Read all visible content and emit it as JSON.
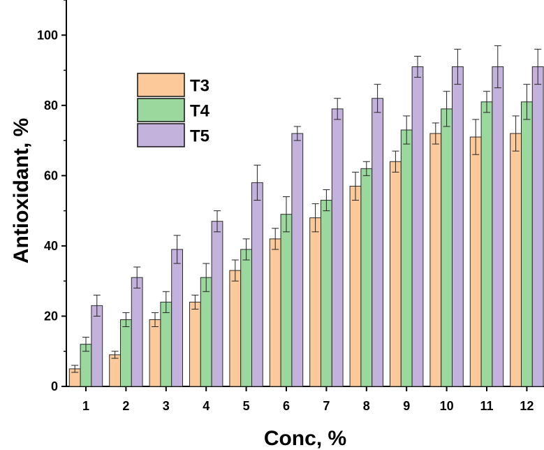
{
  "chart_data": {
    "type": "bar",
    "title": "",
    "xlabel": "Conc, %",
    "ylabel": "Antioxidant, %",
    "categories": [
      "1",
      "2",
      "3",
      "4",
      "5",
      "6",
      "7",
      "8",
      "9",
      "10",
      "11",
      "12"
    ],
    "ylim": [
      0,
      110
    ],
    "yticks": [
      "0",
      "20",
      "40",
      "60",
      "80",
      "100"
    ],
    "legend_position": "top-left",
    "grid": false,
    "series": [
      {
        "name": "T3",
        "color": "#FCC99B",
        "values": [
          5,
          9,
          19,
          24,
          33,
          42,
          48,
          57,
          64,
          72,
          71,
          72
        ],
        "errors": [
          1,
          1,
          2,
          2,
          3,
          3,
          4,
          4,
          3,
          3,
          5,
          5
        ]
      },
      {
        "name": "T4",
        "color": "#9AD89E",
        "values": [
          12,
          19,
          24,
          31,
          39,
          49,
          53,
          62,
          73,
          79,
          81,
          81
        ],
        "errors": [
          2,
          2,
          3,
          4,
          3,
          5,
          3,
          2,
          4,
          5,
          3,
          5
        ]
      },
      {
        "name": "T5",
        "color": "#C2B2DC",
        "values": [
          23,
          31,
          39,
          47,
          58,
          72,
          79,
          82,
          91,
          91,
          91,
          91
        ],
        "errors": [
          3,
          3,
          4,
          3,
          5,
          2,
          3,
          4,
          3,
          5,
          6,
          5
        ]
      }
    ]
  }
}
